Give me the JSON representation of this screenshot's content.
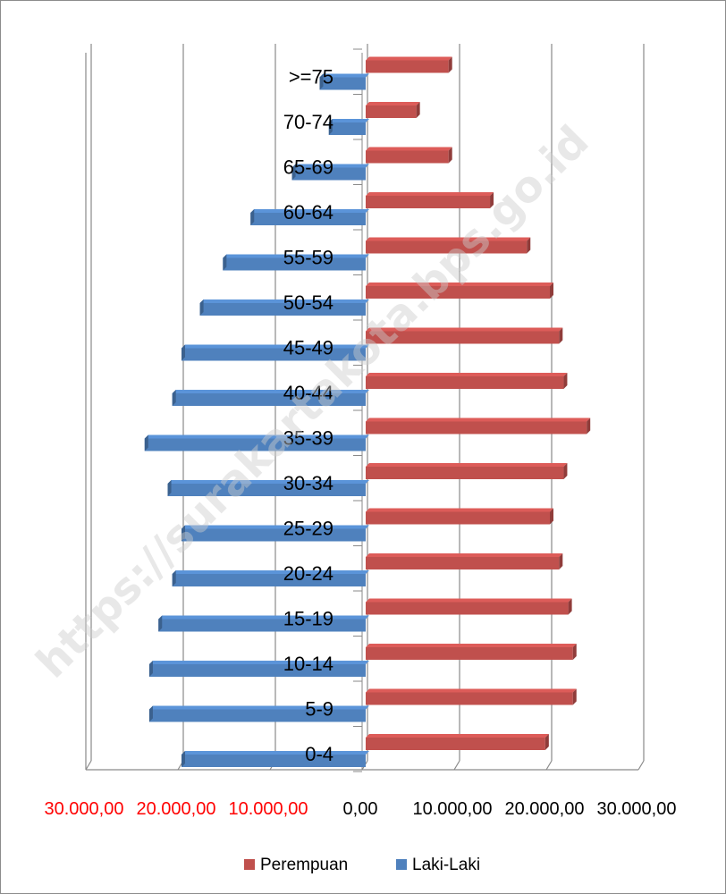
{
  "chart_data": {
    "type": "bar",
    "orientation": "horizontal",
    "subtype": "population-pyramid",
    "title": "",
    "xlabel": "",
    "ylabel": "",
    "categories": [
      "0-4",
      "5-9",
      "10-14",
      "15-19",
      "20-24",
      "25-29",
      "30-34",
      "35-39",
      "40-44",
      "45-49",
      "50-54",
      "55-59",
      "60-64",
      "65-69",
      "70-74",
      ">=75"
    ],
    "series": [
      {
        "name": "Laki-Laki",
        "color": "#4f81bd",
        "direction": "left",
        "values": [
          20000,
          23500,
          23500,
          22500,
          21000,
          20000,
          21500,
          24000,
          21000,
          20000,
          18000,
          15500,
          12500,
          8000,
          4000,
          5000
        ]
      },
      {
        "name": "Perempuan",
        "color": "#c0504d",
        "direction": "right",
        "values": [
          19500,
          22500,
          22500,
          22000,
          21000,
          20000,
          21500,
          24000,
          21500,
          21000,
          20000,
          17500,
          13500,
          9000,
          5500,
          9000
        ]
      }
    ],
    "xlim": [
      -30000,
      30000
    ],
    "x_ticks": [
      {
        "value": -30000,
        "label": "30.000,00",
        "color": "#ff0000"
      },
      {
        "value": -20000,
        "label": "20.000,00",
        "color": "#ff0000"
      },
      {
        "value": -10000,
        "label": "10.000,00",
        "color": "#ff0000"
      },
      {
        "value": 0,
        "label": "0,00",
        "color": "#000000"
      },
      {
        "value": 10000,
        "label": "10.000,00",
        "color": "#000000"
      },
      {
        "value": 20000,
        "label": "20.000,00",
        "color": "#000000"
      },
      {
        "value": 30000,
        "label": "30.000,00",
        "color": "#000000"
      }
    ],
    "grid": true,
    "legend_position": "bottom",
    "legend": [
      "Perempuan",
      "Laki-Laki"
    ],
    "watermark": "https://surakartakota.bps.go.id"
  }
}
